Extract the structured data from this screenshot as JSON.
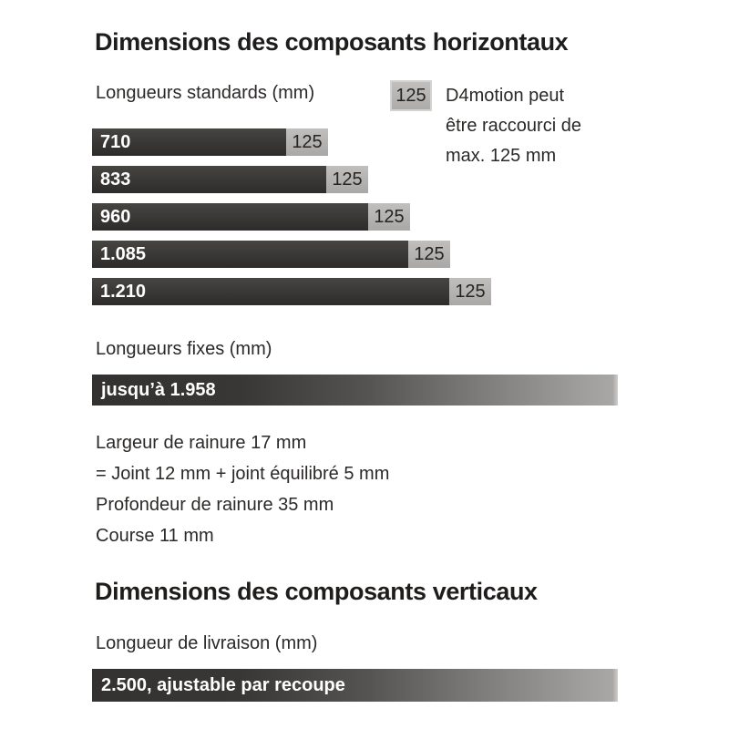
{
  "section_horizontal": {
    "title": "Dimensions des composants horizontaux",
    "standards_label": "Longueurs standards (mm)",
    "legend": {
      "swatch_label": "125",
      "lines": [
        "D4motion peut",
        "être raccourci de",
        "max. 125 mm"
      ]
    },
    "fixed_label": "Longueurs fixes (mm)",
    "fixed_bar_label": "jusqu’à 1.958",
    "specs": [
      "Largeur de rainure 17 mm",
      "= Joint 12 mm + joint équilibré 5 mm",
      "Profondeur de rainure 35 mm",
      "Course 11 mm"
    ]
  },
  "section_vertical": {
    "title": "Dimensions des composants verticaux",
    "delivery_label": "Longueur de livraison (mm)",
    "delivery_bar_label": "2.500, ajustable par recoupe"
  },
  "chart_data": {
    "type": "bar",
    "orientation": "horizontal",
    "title": "Longueurs standards (mm)",
    "unit": "mm",
    "bars": [
      {
        "label": "710",
        "value_mm": 710,
        "extension_label": "125",
        "extension_mm": 125
      },
      {
        "label": "833",
        "value_mm": 833,
        "extension_label": "125",
        "extension_mm": 125
      },
      {
        "label": "960",
        "value_mm": 960,
        "extension_label": "125",
        "extension_mm": 125
      },
      {
        "label": "1.085",
        "value_mm": 1085,
        "extension_label": "125",
        "extension_mm": 125
      },
      {
        "label": "1.210",
        "value_mm": 1210,
        "extension_label": "125",
        "extension_mm": 125
      }
    ],
    "legend": "125 = D4motion peut être raccourci de max. 125 mm",
    "fixed_length": {
      "label": "jusqu’à 1.958",
      "max_mm": 1958
    },
    "delivery_length": {
      "label": "2.500, ajustable par recoupe",
      "value_mm": 2500
    }
  },
  "colors": {
    "bar_dark": "#343230",
    "bar_light_gray": "#b3b2b0",
    "bar_text_white": "#ffffff",
    "text": "#2b2927",
    "background": "#ffffff"
  }
}
